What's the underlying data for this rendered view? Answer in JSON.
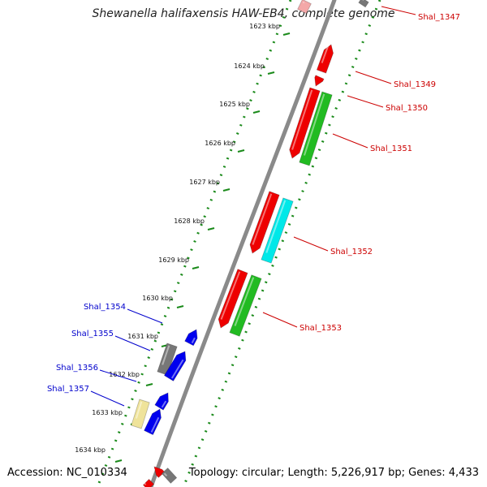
{
  "title": "Shewanella halifaxensis HAW-EB4, complete genome",
  "footer": {
    "accession": "Accession: NC_010334",
    "stats": "Topology: circular; Length: 5,226,917 bp; Genes: 4,433"
  },
  "ticks": [
    "1623 kbp",
    "1624 kbp",
    "1625 kbp",
    "1626 kbp",
    "1627 kbp",
    "1628 kbp",
    "1629 kbp",
    "1630 kbp",
    "1631 kbp",
    "1632 kbp",
    "1633 kbp",
    "1634 kbp"
  ],
  "genes_right": [
    "Shal_1347",
    "Shal_1349",
    "Shal_1350",
    "Shal_1351",
    "Shal_1352",
    "Shal_1353"
  ],
  "genes_left": [
    "Shal_1354",
    "Shal_1355",
    "Shal_1356",
    "Shal_1357"
  ],
  "colors": {
    "forward_label": "#cc0000",
    "reverse_label": "#0000cc",
    "red": "#ee0000",
    "green": "#22bb22",
    "cyan": "#00e8e8",
    "blue": "#0000ee",
    "gray": "#777777",
    "khaki": "#efe39a",
    "backbone": "#8a8a8a",
    "dotted": "#1a8a1a"
  }
}
